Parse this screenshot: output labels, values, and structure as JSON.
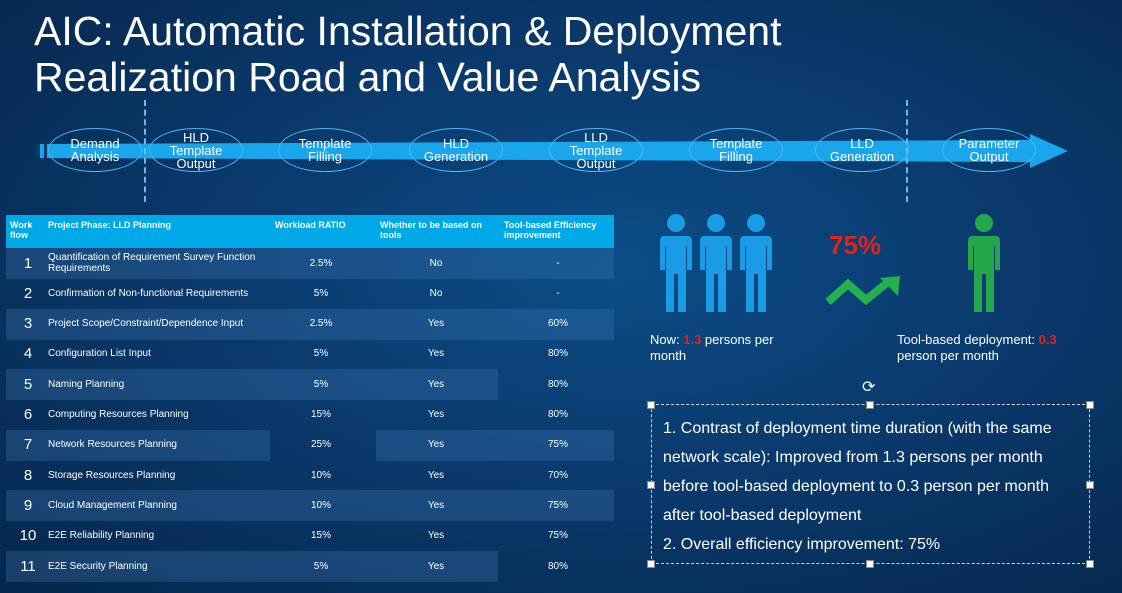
{
  "title": {
    "line1": "AIC: Automatic Installation & Deployment",
    "line2": "Realization Road and Value Analysis"
  },
  "road": {
    "steps": [
      {
        "label": "Demand\nAnalysis"
      },
      {
        "label": "HLD\nTemplate\nOutput"
      },
      {
        "label": "Template\nFilling"
      },
      {
        "label": "HLD\nGeneration"
      },
      {
        "label": "LLD\nTemplate\nOutput"
      },
      {
        "label": "Template\nFilling"
      },
      {
        "label": "LLD\nGeneration"
      },
      {
        "label": "Parameter\nOutput"
      }
    ],
    "arrow_color": "#1aa6ec"
  },
  "table": {
    "headers": {
      "work_flow": "Work flow",
      "phase": "Project Phase: LLD Planning",
      "ratio": "Workload RATIO",
      "tools": "Whether to be based on tools",
      "efficiency": "Tool-based Efficiency improvement"
    },
    "rows": [
      {
        "n": "1",
        "phase": "Quantification of Requirement Survey Function Requirements",
        "ratio": "2.5%",
        "tools": "No",
        "eff": "-"
      },
      {
        "n": "2",
        "phase": "Confirmation of Non-functional Requirements",
        "ratio": "5%",
        "tools": "No",
        "eff": "-"
      },
      {
        "n": "3",
        "phase": "Project Scope/Constraint/Dependence Input",
        "ratio": "2.5%",
        "tools": "Yes",
        "eff": "60%"
      },
      {
        "n": "4",
        "phase": "Configuration List Input",
        "ratio": "5%",
        "tools": "Yes",
        "eff": "80%"
      },
      {
        "n": "5",
        "phase": "Naming Planning",
        "ratio": "5%",
        "tools": "Yes",
        "eff": "80%"
      },
      {
        "n": "6",
        "phase": "Computing Resources Planning",
        "ratio": "15%",
        "tools": "Yes",
        "eff": "80%"
      },
      {
        "n": "7",
        "phase": "Network Resources Planning",
        "ratio": "25%",
        "tools": "Yes",
        "eff": "75%"
      },
      {
        "n": "8",
        "phase": "Storage Resources Planning",
        "ratio": "10%",
        "tools": "Yes",
        "eff": "70%"
      },
      {
        "n": "9",
        "phase": "Cloud Management Planning",
        "ratio": "10%",
        "tools": "Yes",
        "eff": "75%"
      },
      {
        "n": "10",
        "phase": "E2E Reliability Planning",
        "ratio": "15%",
        "tools": "Yes",
        "eff": "75%"
      },
      {
        "n": "11",
        "phase": "E2E Security Planning",
        "ratio": "5%",
        "tools": "Yes",
        "eff": "80%"
      }
    ],
    "header_color": "#00a8e8"
  },
  "value": {
    "percent": "75%",
    "now_prefix": "Now: ",
    "now_value": "1.3",
    "now_suffix": " persons per month",
    "tool_prefix": "Tool-based deployment: ",
    "tool_value": "0.3",
    "tool_suffix": " person per month",
    "blue_person_color": "#1a9be6",
    "green_person_color": "#22a84a",
    "highlight_color": "#e3231b"
  },
  "textbox": {
    "line1": "1. Contrast of deployment time duration (with the same network scale): Improved from 1.3 persons per month before tool-based deployment to 0.3 person per month after tool-based deployment",
    "line2": "2. Overall efficiency improvement: 75%"
  }
}
